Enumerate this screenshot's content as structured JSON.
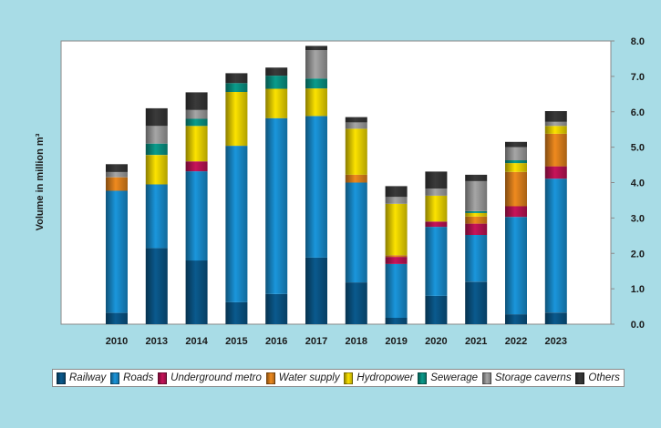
{
  "chart_data": {
    "type": "bar",
    "stacked": true,
    "title": "",
    "xlabel": "",
    "ylabel": "Volume in million m³",
    "ylim": [
      0,
      8
    ],
    "yticks": [
      "0.0",
      "1.0",
      "2.0",
      "3.0",
      "4.0",
      "5.0",
      "6.0",
      "7.0",
      "8.0"
    ],
    "y_axis_side": "right",
    "grid": false,
    "legend_position": "bottom",
    "categories": [
      "2010",
      "2013",
      "2014",
      "2015",
      "2016",
      "2017",
      "2018",
      "2019",
      "2020",
      "2021",
      "2022",
      "2023"
    ],
    "series": [
      {
        "name": "Railway",
        "color": "#0a5a8e",
        "values": [
          0.32,
          2.15,
          1.8,
          0.62,
          0.85,
          1.88,
          1.18,
          0.18,
          0.8,
          1.2,
          0.28,
          0.33
        ]
      },
      {
        "name": "Roads",
        "color": "#1a96dc",
        "values": [
          3.45,
          1.8,
          2.52,
          4.42,
          4.97,
          4.0,
          2.82,
          1.52,
          1.95,
          1.32,
          2.75,
          3.78
        ]
      },
      {
        "name": "Underground metro",
        "color": "#c8145a",
        "values": [
          0,
          0,
          0.28,
          0,
          0,
          0,
          0,
          0.2,
          0.15,
          0.32,
          0.3,
          0.35
        ]
      },
      {
        "name": "Water supply",
        "color": "#ef8a1e",
        "values": [
          0.38,
          0,
          0,
          0,
          0,
          0,
          0.22,
          0.05,
          0,
          0.2,
          0.97,
          0.92
        ]
      },
      {
        "name": "Hydropower",
        "color": "#fce300",
        "values": [
          0,
          0.83,
          1.0,
          1.52,
          0.83,
          0.78,
          1.3,
          1.45,
          0.73,
          0.1,
          0.25,
          0.22
        ]
      },
      {
        "name": "Sewerage",
        "color": "#0a9c8c",
        "values": [
          0,
          0.32,
          0.2,
          0.25,
          0.37,
          0.28,
          0,
          0,
          0,
          0.05,
          0.08,
          0
        ]
      },
      {
        "name": "Storage caverns",
        "color": "#a6a6a6",
        "values": [
          0.15,
          0.5,
          0.25,
          0,
          0,
          0.8,
          0.18,
          0.2,
          0.2,
          0.85,
          0.37,
          0.12
        ]
      },
      {
        "name": "Others",
        "color": "#3a3a3a",
        "values": [
          0.22,
          0.5,
          0.5,
          0.28,
          0.23,
          0.12,
          0.15,
          0.3,
          0.48,
          0.18,
          0.15,
          0.3
        ]
      }
    ]
  }
}
